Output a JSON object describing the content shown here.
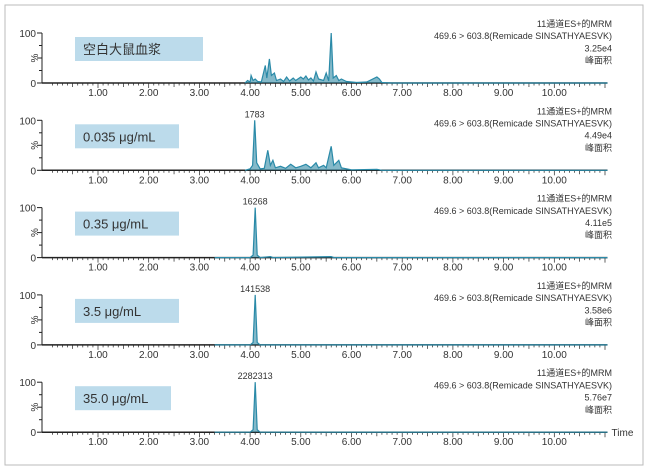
{
  "chart_data": {
    "type": "line",
    "xlabel": "Time",
    "ylabel": "%",
    "xlim": [
      0,
      11.05
    ],
    "ylim": [
      0,
      100
    ],
    "x_ticks": [
      "1.00",
      "2.00",
      "3.00",
      "4.00",
      "5.00",
      "6.00",
      "7.00",
      "8.00",
      "9.00",
      "10.00"
    ],
    "y_ticks": [
      "0",
      "100"
    ],
    "colors": {
      "trace": "#2a8aa8",
      "fill": "#1f7f9d",
      "label_box": "#bcdbeb",
      "axis": "#222222"
    },
    "panels": [
      {
        "label": "空白大鼠血浆",
        "info": [
          "11通道ES+的MRM",
          "469.6 > 603.8(Remicade SINSATHYAESVK)",
          "3.25e4",
          "峰面积"
        ],
        "peak_label": null,
        "peak_time": null,
        "trace_start": 3.9,
        "points": [
          [
            3.9,
            0
          ],
          [
            3.95,
            5
          ],
          [
            4.0,
            2
          ],
          [
            4.02,
            15
          ],
          [
            4.06,
            5
          ],
          [
            4.1,
            8
          ],
          [
            4.15,
            3
          ],
          [
            4.22,
            2
          ],
          [
            4.3,
            35
          ],
          [
            4.33,
            10
          ],
          [
            4.38,
            48
          ],
          [
            4.42,
            15
          ],
          [
            4.48,
            20
          ],
          [
            4.52,
            5
          ],
          [
            4.6,
            8
          ],
          [
            4.66,
            3
          ],
          [
            4.72,
            12
          ],
          [
            4.78,
            4
          ],
          [
            4.85,
            10
          ],
          [
            4.9,
            5
          ],
          [
            5.0,
            12
          ],
          [
            5.05,
            8
          ],
          [
            5.1,
            14
          ],
          [
            5.15,
            6
          ],
          [
            5.2,
            10
          ],
          [
            5.25,
            4
          ],
          [
            5.3,
            22
          ],
          [
            5.35,
            8
          ],
          [
            5.45,
            5
          ],
          [
            5.5,
            20
          ],
          [
            5.55,
            4
          ],
          [
            5.6,
            100
          ],
          [
            5.64,
            10
          ],
          [
            5.7,
            15
          ],
          [
            5.75,
            5
          ],
          [
            5.8,
            8
          ],
          [
            5.9,
            3
          ],
          [
            6.0,
            2
          ],
          [
            6.1,
            1
          ],
          [
            6.3,
            2
          ],
          [
            6.5,
            12
          ],
          [
            6.55,
            8
          ],
          [
            6.6,
            1
          ],
          [
            6.8,
            0
          ],
          [
            11.05,
            0
          ]
        ]
      },
      {
        "label": "0.035 μg/mL",
        "info": [
          "11通道ES+的MRM",
          "469.6 > 603.8(Remicade SINSATHYAESVK)",
          "4.49e4",
          "峰面积"
        ],
        "peak_label": "1783",
        "peak_time": 4.09,
        "trace_start": 3.9,
        "points": [
          [
            3.9,
            0
          ],
          [
            4.0,
            3
          ],
          [
            4.05,
            10
          ],
          [
            4.09,
            100
          ],
          [
            4.13,
            15
          ],
          [
            4.2,
            3
          ],
          [
            4.28,
            4
          ],
          [
            4.35,
            40
          ],
          [
            4.4,
            10
          ],
          [
            4.45,
            20
          ],
          [
            4.5,
            5
          ],
          [
            4.6,
            8
          ],
          [
            4.7,
            4
          ],
          [
            4.8,
            12
          ],
          [
            4.9,
            5
          ],
          [
            5.0,
            8
          ],
          [
            5.1,
            12
          ],
          [
            5.2,
            5
          ],
          [
            5.3,
            15
          ],
          [
            5.35,
            5
          ],
          [
            5.45,
            10
          ],
          [
            5.5,
            5
          ],
          [
            5.6,
            48
          ],
          [
            5.65,
            10
          ],
          [
            5.75,
            20
          ],
          [
            5.8,
            5
          ],
          [
            5.9,
            3
          ],
          [
            6.0,
            1
          ],
          [
            6.5,
            2
          ],
          [
            6.6,
            0
          ],
          [
            11.05,
            0
          ]
        ]
      },
      {
        "label": "0.35 μg/mL",
        "info": [
          "11通道ES+的MRM",
          "469.6 > 603.8(Remicade SINSATHYAESVK)",
          "4.11e5",
          "峰面积"
        ],
        "peak_label": "16268",
        "peak_time": 4.1,
        "trace_start": 3.3,
        "points": [
          [
            3.3,
            0
          ],
          [
            4.0,
            0
          ],
          [
            4.06,
            5
          ],
          [
            4.1,
            100
          ],
          [
            4.14,
            5
          ],
          [
            4.2,
            0
          ],
          [
            4.4,
            2
          ],
          [
            4.45,
            0
          ],
          [
            5.6,
            2
          ],
          [
            5.65,
            0
          ],
          [
            11.05,
            0
          ]
        ]
      },
      {
        "label": "3.5 μg/mL",
        "info": [
          "11通道ES+的MRM",
          "469.6 > 603.8(Remicade SINSATHYAESVK)",
          "3.58e6",
          "峰面积"
        ],
        "peak_label": "141538",
        "peak_time": 4.1,
        "trace_start": 3.3,
        "points": [
          [
            3.3,
            0
          ],
          [
            4.0,
            0
          ],
          [
            4.06,
            5
          ],
          [
            4.1,
            100
          ],
          [
            4.14,
            5
          ],
          [
            4.2,
            0
          ],
          [
            11.05,
            0
          ]
        ]
      },
      {
        "label": "35.0 μg/mL",
        "info": [
          "11通道ES+的MRM",
          "469.6 > 603.8(Remicade SINSATHYAESVK)",
          "5.76e7",
          "峰面积"
        ],
        "peak_label": "2282313",
        "peak_time": 4.1,
        "trace_start": 3.3,
        "points": [
          [
            3.3,
            0
          ],
          [
            4.0,
            0
          ],
          [
            4.06,
            5
          ],
          [
            4.1,
            100
          ],
          [
            4.14,
            5
          ],
          [
            4.2,
            0
          ],
          [
            11.05,
            0
          ]
        ]
      }
    ]
  }
}
